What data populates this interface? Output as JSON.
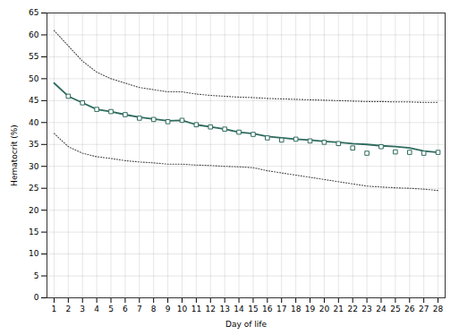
{
  "chart_data": {
    "type": "line",
    "xlabel": "Day of life",
    "ylabel": "Hematocrit (%)",
    "x": [
      1,
      2,
      3,
      4,
      5,
      6,
      7,
      8,
      9,
      10,
      11,
      12,
      13,
      14,
      15,
      16,
      17,
      18,
      19,
      20,
      21,
      22,
      23,
      24,
      25,
      26,
      27,
      28
    ],
    "series": [
      {
        "type": "line",
        "color": "#444444",
        "line_style": "dotted",
        "values": [
          61.0,
          57.5,
          54.0,
          51.5,
          50.0,
          49.0,
          48.0,
          47.5,
          47.0,
          47.0,
          46.5,
          46.2,
          46.0,
          45.8,
          45.7,
          45.5,
          45.4,
          45.3,
          45.2,
          45.1,
          45.0,
          44.9,
          44.8,
          44.8,
          44.7,
          44.7,
          44.6,
          44.6
        ]
      },
      {
        "type": "line",
        "color": "#444444",
        "line_style": "dotted",
        "values": [
          37.5,
          34.5,
          33.0,
          32.2,
          31.8,
          31.3,
          31.0,
          30.8,
          30.5,
          30.5,
          30.3,
          30.2,
          30.0,
          29.9,
          29.7,
          29.0,
          28.5,
          28.0,
          27.5,
          27.0,
          26.5,
          26.0,
          25.5,
          25.3,
          25.1,
          25.0,
          24.8,
          24.5
        ]
      },
      {
        "type": "line",
        "color": "#2e6b5e",
        "line_style": "solid",
        "values": [
          49.0,
          46.0,
          44.5,
          43.0,
          42.5,
          41.8,
          41.2,
          40.8,
          40.4,
          40.5,
          39.5,
          39.0,
          38.5,
          37.8,
          37.5,
          36.8,
          36.5,
          36.2,
          36.0,
          35.7,
          35.5,
          35.2,
          35.0,
          34.7,
          34.5,
          34.2,
          33.5,
          33.2
        ]
      },
      {
        "type": "scatter",
        "color": "#2e6b5e",
        "marker": "square",
        "x": [
          2,
          3,
          4,
          5,
          6,
          7,
          8,
          9,
          10,
          11,
          12,
          13,
          14,
          15,
          16,
          17,
          18,
          19,
          20,
          21,
          22,
          23,
          24,
          25,
          26,
          27,
          28
        ],
        "values": [
          46.0,
          44.5,
          43.0,
          42.5,
          41.8,
          41.0,
          40.7,
          40.2,
          40.5,
          39.5,
          39.0,
          38.5,
          37.8,
          37.3,
          36.5,
          36.0,
          36.2,
          35.8,
          35.5,
          35.2,
          34.2,
          33.0,
          34.5,
          33.3,
          33.2,
          33.0,
          33.2
        ]
      }
    ],
    "xlim": [
      0.5,
      28.5
    ],
    "ylim": [
      0,
      65
    ],
    "xticks": [
      1,
      2,
      3,
      4,
      5,
      6,
      7,
      8,
      9,
      10,
      11,
      12,
      13,
      14,
      15,
      16,
      17,
      18,
      19,
      20,
      21,
      22,
      23,
      24,
      25,
      26,
      27,
      28
    ],
    "yticks": [
      0,
      5,
      10,
      15,
      20,
      25,
      30,
      35,
      40,
      45,
      50,
      55,
      60,
      65
    ],
    "grid": true
  }
}
